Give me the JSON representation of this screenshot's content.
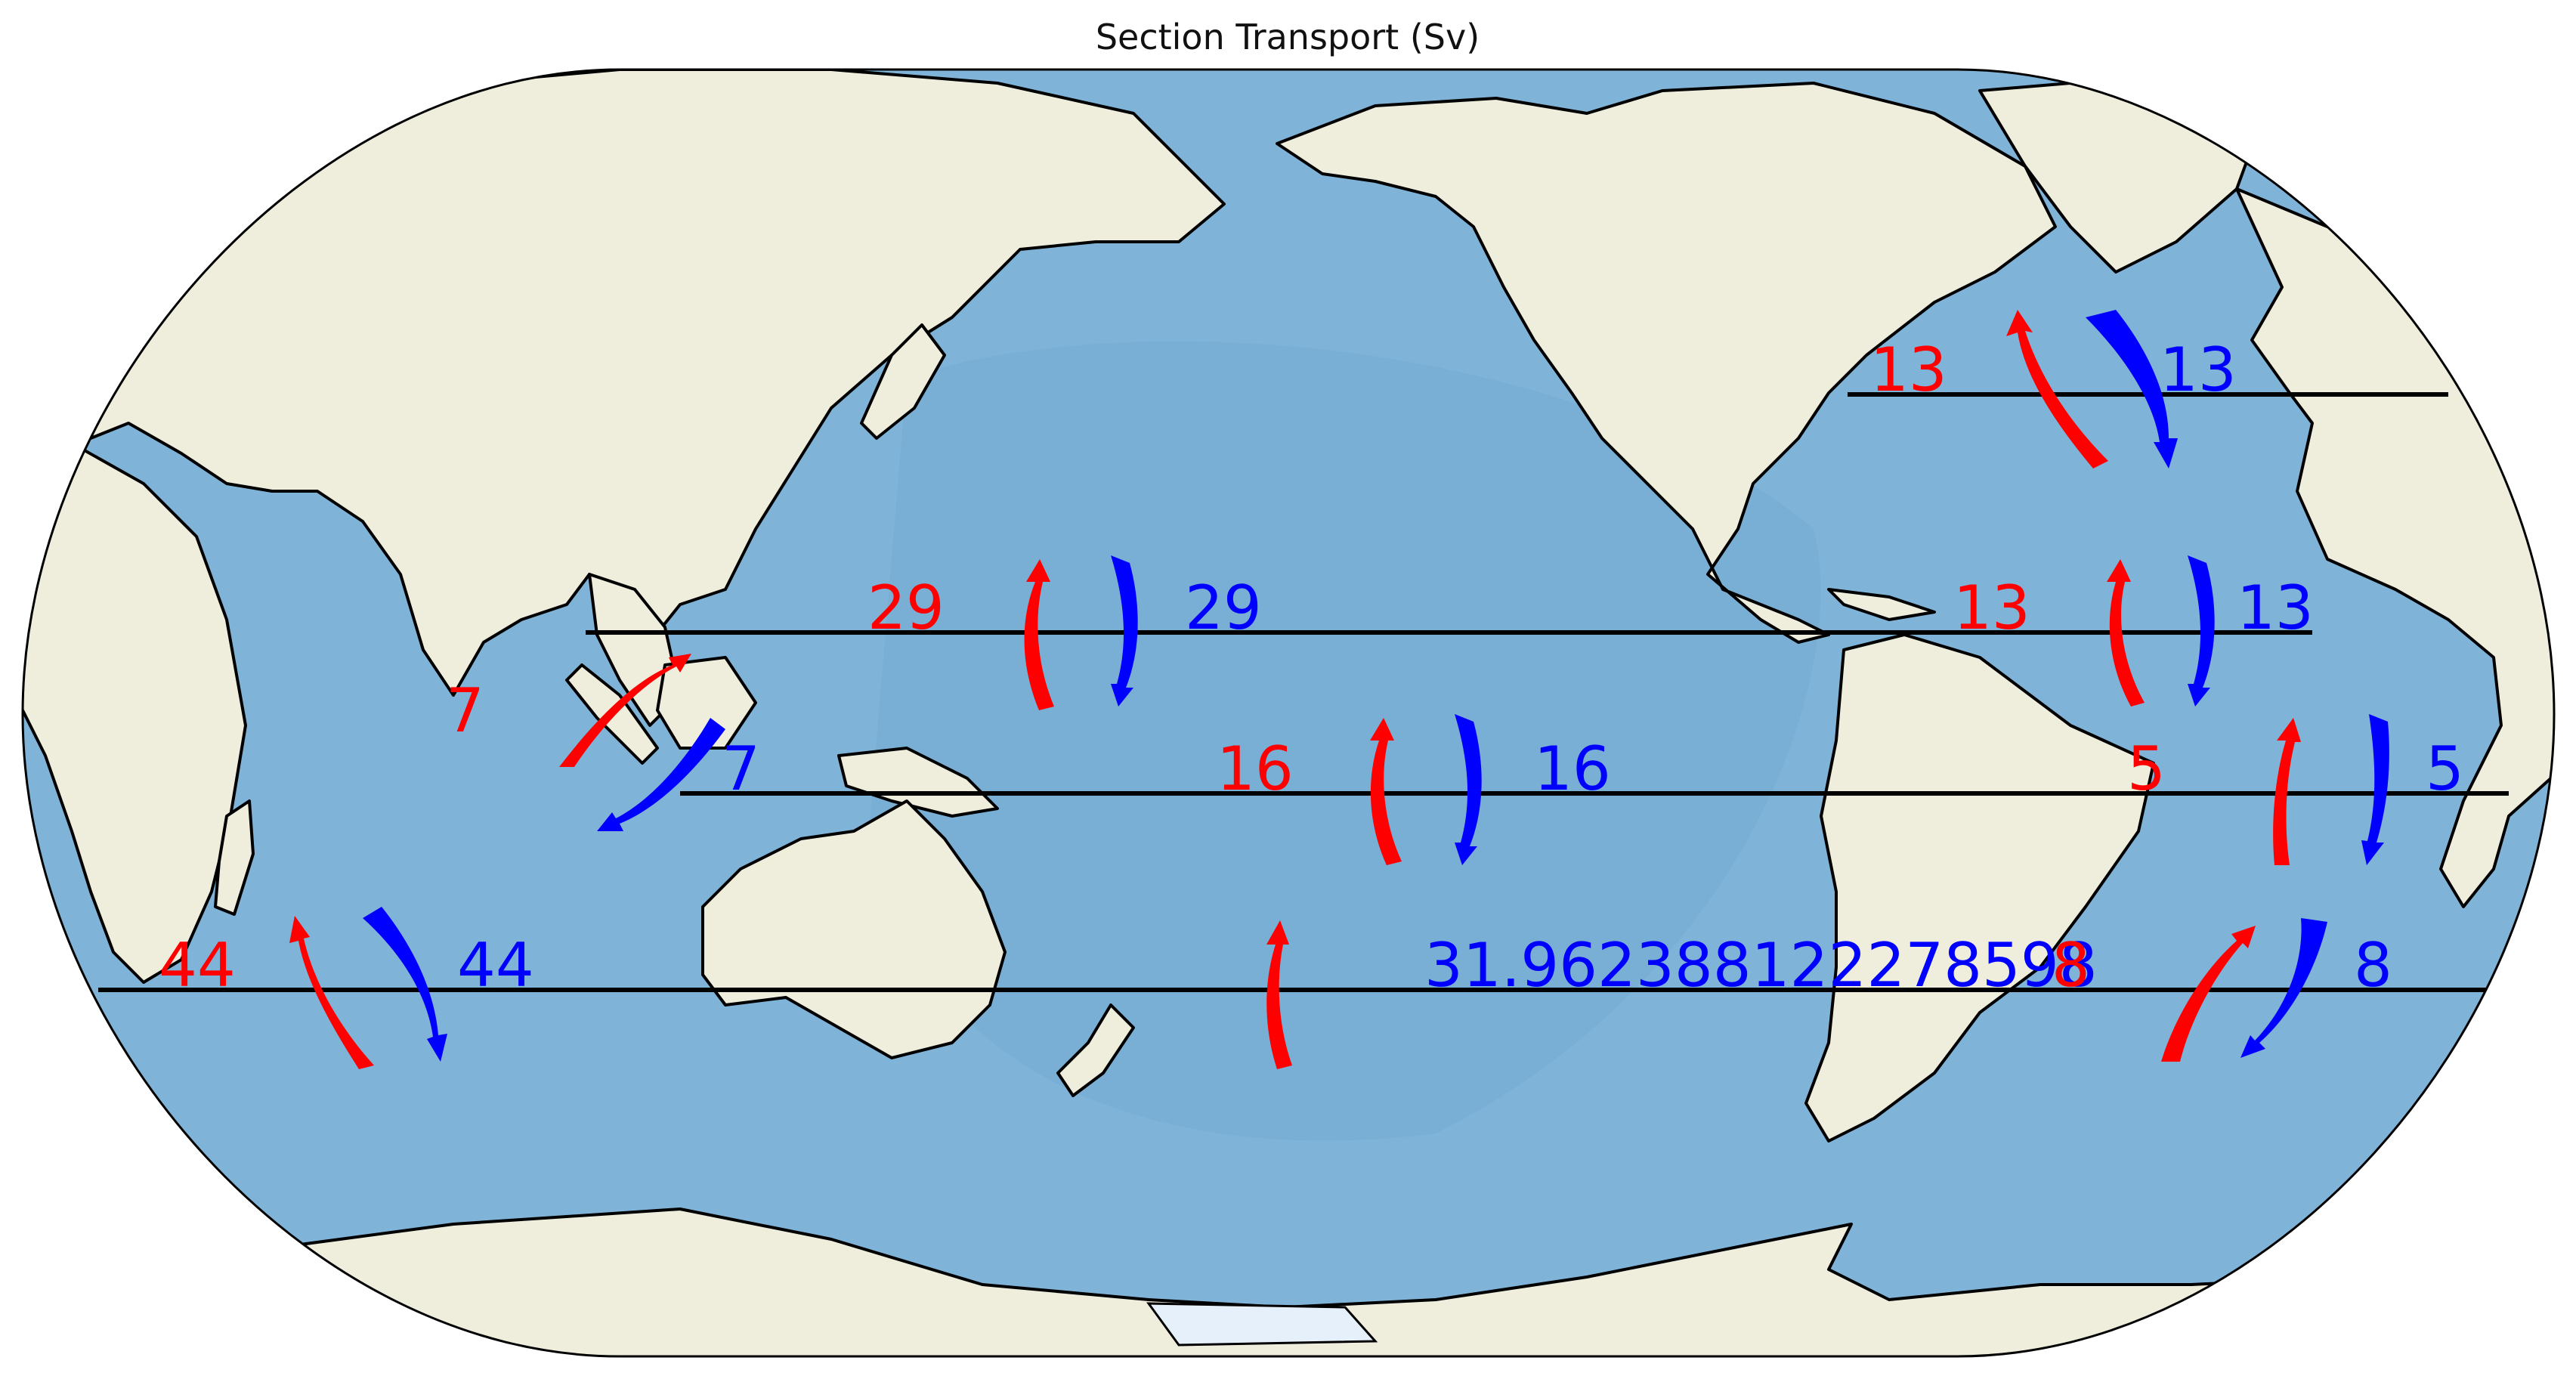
{
  "title": "Section Transport (Sv)",
  "colors": {
    "ocean": "#7fb3d8",
    "ocean_dark": "#6aa2cd",
    "land": "#efeddc",
    "ice": "#e6f0fa",
    "northward": "#ff0000",
    "southward": "#0000ff"
  },
  "sections": [
    {
      "id": "north-atlantic-26n",
      "red_label": "13",
      "blue_label": "13"
    },
    {
      "id": "pacific-10n",
      "red_label": "29",
      "blue_label": "29"
    },
    {
      "id": "atlantic-10n",
      "red_label": "13",
      "blue_label": "13"
    },
    {
      "id": "indonesian-throughflow",
      "red_label": "7",
      "blue_label": "7"
    },
    {
      "id": "pacific-10s",
      "red_label": "16",
      "blue_label": "16"
    },
    {
      "id": "atlantic-10s",
      "red_label": "5",
      "blue_label": "5"
    },
    {
      "id": "indian-30s",
      "red_label": "44",
      "blue_label": "44"
    },
    {
      "id": "pacific-30s",
      "red_label": "",
      "blue_label": "31.962388122278598"
    },
    {
      "id": "atlantic-30s",
      "red_label": "8",
      "blue_label": "8"
    }
  ]
}
